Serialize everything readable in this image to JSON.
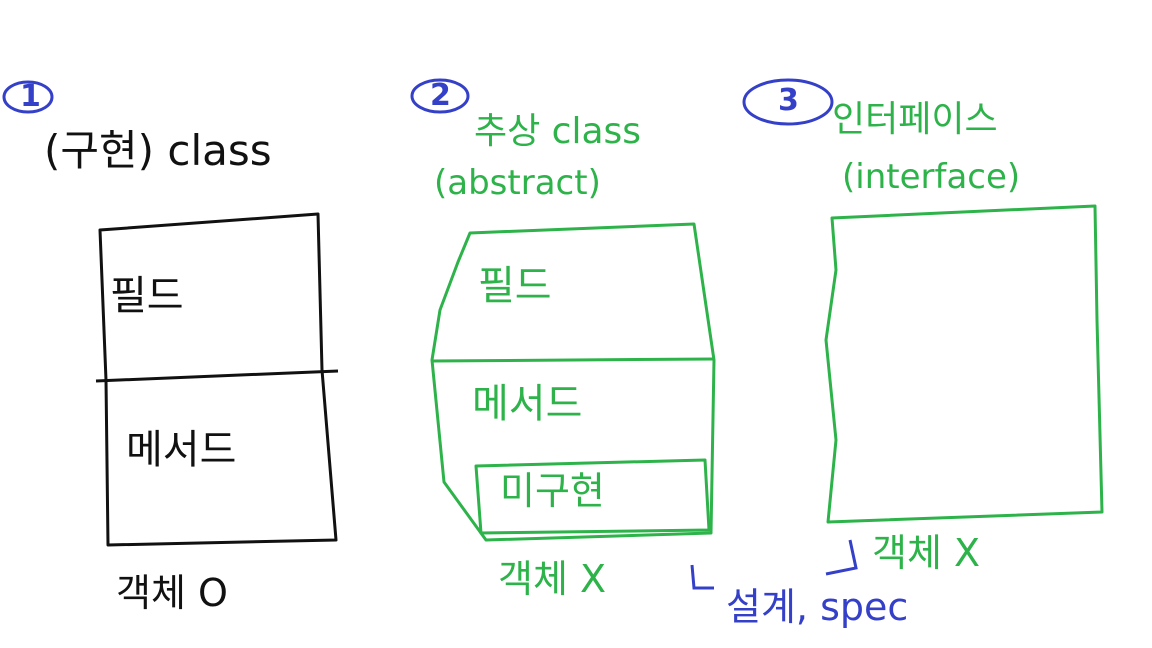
{
  "colors": {
    "black_ink": "#111111",
    "green_ink": "#2db34a",
    "blue_ink": "#3440c8",
    "background": "#ffffff"
  },
  "section1": {
    "number": "1",
    "title": "(구현) class",
    "field_label": "필드",
    "method_label": "메서드",
    "footer": "객체 O"
  },
  "section2": {
    "number": "2",
    "title": "추상 class",
    "subtitle": "(abstract)",
    "field_label": "필드",
    "method_label": "메서드",
    "inner_label": "미구현",
    "footer": "객체 X"
  },
  "section3": {
    "number": "3",
    "title": "인터페이스",
    "subtitle": "(interface)",
    "footer": "객체 X"
  },
  "annotation": {
    "text": "설계, spec"
  }
}
